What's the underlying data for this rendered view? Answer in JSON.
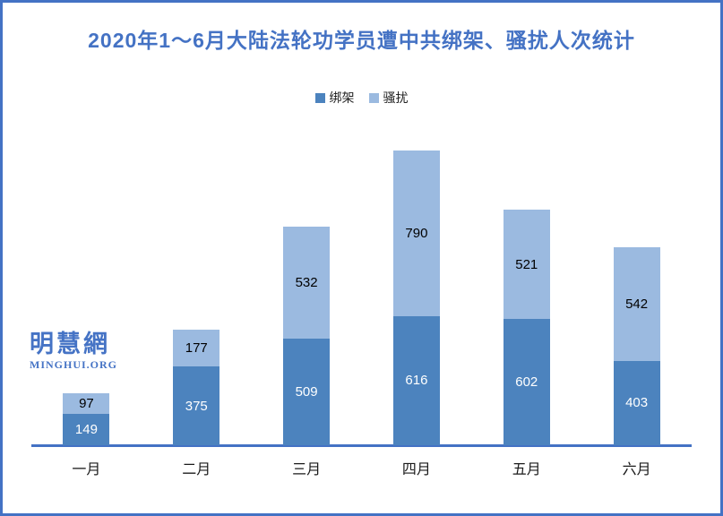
{
  "frame": {
    "border_color": "#4472C4",
    "background": "#FFFFFF"
  },
  "title": {
    "text": "2020年1～6月大陆法轮功学员遭中共绑架、骚扰人次统计",
    "color": "#4472C4"
  },
  "legend": {
    "items": [
      {
        "label": "绑架",
        "color": "#4C83BE"
      },
      {
        "label": "骚扰",
        "color": "#9BBAE0"
      }
    ]
  },
  "watermark": {
    "name": "明慧網",
    "site": "MINGHUI.ORG",
    "color": "#4573C5"
  },
  "chart_data": {
    "type": "bar",
    "stacked": true,
    "title": "2020年1～6月大陆法轮功学员遭中共绑架、骚扰人次统计",
    "categories": [
      "一月",
      "二月",
      "三月",
      "四月",
      "五月",
      "六月"
    ],
    "series": [
      {
        "name": "绑架",
        "color": "#4C83BE",
        "label_color": "#FFFFFF",
        "values": [
          149,
          375,
          509,
          616,
          602,
          403
        ]
      },
      {
        "name": "骚扰",
        "color": "#9BBAE0",
        "label_color": "#000000",
        "values": [
          97,
          177,
          532,
          790,
          521,
          542
        ]
      }
    ],
    "totals": [
      246,
      552,
      1041,
      1406,
      1123,
      945
    ],
    "xlabel": "",
    "ylabel": "",
    "ylim": [
      0,
      1500
    ],
    "grid": false,
    "y_axis_visible": false,
    "data_labels": true,
    "legend_position": "top",
    "axis_line_color": "#4472C4"
  }
}
